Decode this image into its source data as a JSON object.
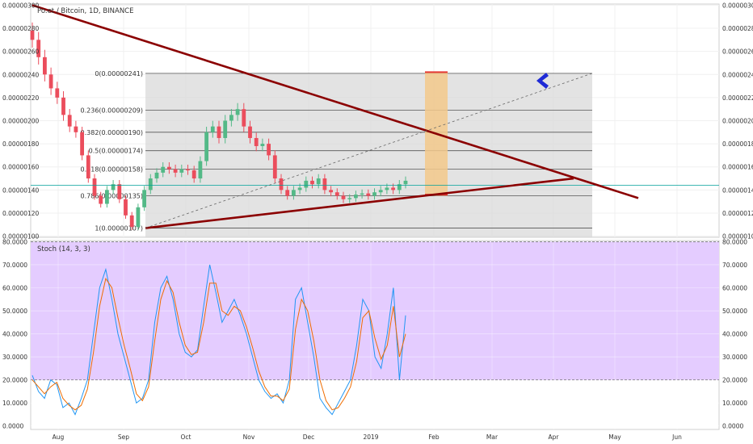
{
  "header": {
    "symbol_title": "Po.et / Bitcoin, 1D, BINANCE"
  },
  "stoch": {
    "label": "Stoch (14, 3, 3)"
  },
  "colors": {
    "up_candle": "#53b987",
    "down_candle": "#eb4d5c",
    "trendline": "#8b0000",
    "fib_zone": "#d9d9d9",
    "stoch_band": "#e4ccff",
    "k_line": "#2196f3",
    "d_line": "#ef6c00",
    "highlight": "#f3c98b",
    "arrow": "#1f2bd6",
    "horizontal_line": "#00a19a"
  },
  "icons": {
    "arrow": "arrow-left-icon"
  },
  "chart_data": [
    {
      "type": "candlestick",
      "title": "Po.et / Bitcoin, 1D, BINANCE",
      "x_labels": [
        "Aug",
        "Sep",
        "Oct",
        "Nov",
        "Dec",
        "2019",
        "Feb",
        "Mar",
        "Apr",
        "May",
        "Jun"
      ],
      "y_tick_labels": [
        "0.00000100",
        "0.00000120",
        "0.00000140",
        "0.00000160",
        "0.00000180",
        "0.00000200",
        "0.00000220",
        "0.00000240",
        "0.00000260",
        "0.00000280",
        "0.00000300"
      ],
      "ylim": [
        9.9e-07,
        3.01e-06
      ],
      "horizontal_line": 1.44e-06,
      "fib_levels": [
        {
          "label": "0(0.00000241)",
          "value": 2.41e-06
        },
        {
          "label": "0.236(0.00000209)",
          "value": 2.09e-06
        },
        {
          "label": "0.382(0.00000190)",
          "value": 1.9e-06
        },
        {
          "label": "0.5(0.00000174)",
          "value": 1.74e-06
        },
        {
          "label": "0.618(0.00000158)",
          "value": 1.58e-06
        },
        {
          "label": "0.786(0.00000135)",
          "value": 1.35e-06
        },
        {
          "label": "1(0.00000107)",
          "value": 1.07e-06
        }
      ],
      "ohlc_samples_close": [
        2.7e-06,
        2.55e-06,
        2.4e-06,
        2.28e-06,
        2.2e-06,
        2.05e-06,
        1.95e-06,
        1.9e-06,
        1.7e-06,
        1.5e-06,
        1.35e-06,
        1.28e-06,
        1.4e-06,
        1.45e-06,
        1.32e-06,
        1.18e-06,
        1.08e-06,
        1.25e-06,
        1.4e-06,
        1.5e-06,
        1.55e-06,
        1.6e-06,
        1.58e-06,
        1.55e-06,
        1.58e-06,
        1.57e-06,
        1.5e-06,
        1.65e-06,
        1.9e-06,
        1.95e-06,
        1.85e-06,
        2e-06,
        2.05e-06,
        2.1e-06,
        1.95e-06,
        1.85e-06,
        1.78e-06,
        1.8e-06,
        1.7e-06,
        1.5e-06,
        1.4e-06,
        1.35e-06,
        1.4e-06,
        1.42e-06,
        1.48e-06,
        1.45e-06,
        1.5e-06,
        1.4e-06,
        1.38e-06,
        1.35e-06,
        1.32e-06,
        1.33e-06,
        1.36e-06,
        1.37e-06,
        1.35e-06,
        1.38e-06,
        1.4e-06,
        1.42e-06,
        1.4e-06,
        1.45e-06,
        1.48e-06
      ]
    },
    {
      "type": "line",
      "title": "Stoch (14, 3, 3)",
      "y_tick_labels": [
        "0.0000",
        "10.0000",
        "20.0000",
        "30.0000",
        "40.0000",
        "50.0000",
        "60.0000",
        "70.0000",
        "80.0000"
      ],
      "ylim": [
        -1.5,
        80.5
      ],
      "band": [
        20,
        80
      ],
      "series": [
        {
          "values": [
            22,
            15,
            12,
            20,
            18,
            8,
            10,
            5,
            12,
            20,
            40,
            60,
            68,
            55,
            40,
            30,
            20,
            10,
            12,
            20,
            45,
            60,
            65,
            55,
            40,
            32,
            30,
            33,
            52,
            70,
            58,
            45,
            50,
            55,
            48,
            40,
            30,
            20,
            15,
            12,
            14,
            10,
            20,
            55,
            60,
            45,
            30,
            12,
            8,
            5,
            10,
            15,
            20,
            35,
            55,
            50,
            30,
            25,
            40,
            60,
            20,
            48
          ]
        },
        {
          "values": [
            20,
            17,
            14,
            17,
            19,
            12,
            9,
            7,
            9,
            16,
            32,
            52,
            64,
            60,
            47,
            35,
            25,
            14,
            11,
            17,
            37,
            55,
            63,
            58,
            45,
            35,
            31,
            32,
            45,
            62,
            62,
            50,
            48,
            52,
            50,
            43,
            34,
            24,
            17,
            13,
            13,
            11,
            16,
            42,
            55,
            50,
            37,
            20,
            11,
            7,
            8,
            12,
            17,
            28,
            47,
            50,
            38,
            29,
            35,
            52,
            30,
            40
          ]
        }
      ]
    }
  ]
}
